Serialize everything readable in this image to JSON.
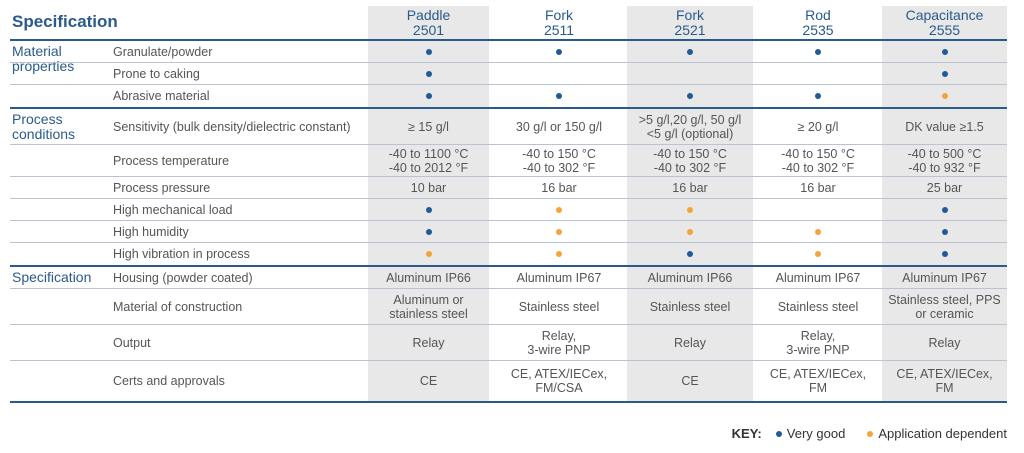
{
  "title": "Specification",
  "columns": [
    {
      "name": "Paddle",
      "model": "2501"
    },
    {
      "name": "Fork",
      "model": "2511"
    },
    {
      "name": "Fork",
      "model": "2521"
    },
    {
      "name": "Rod",
      "model": "2535"
    },
    {
      "name": "Capacitance",
      "model": "2555"
    }
  ],
  "sections": [
    {
      "label": "Material properties",
      "rows": [
        {
          "label": "Granulate/powder",
          "cells": [
            "vg",
            "vg",
            "vg",
            "vg",
            "vg"
          ]
        },
        {
          "label": "Prone to caking",
          "cells": [
            "vg",
            "",
            "",
            "",
            "vg"
          ]
        },
        {
          "label": "Abrasive material",
          "cells": [
            "vg",
            "vg",
            "vg",
            "vg",
            "ad"
          ]
        }
      ]
    },
    {
      "label": "Process conditions",
      "rows": [
        {
          "label": "Sensitivity (bulk density/dielectric constant)",
          "cells": [
            "≥ 15 g/l",
            "30 g/l or 150 g/l",
            ">5 g/l,20 g/l, 50 g/l\n<5 g/l (optional)",
            "≥ 20 g/l",
            "DK value ≥1.5"
          ]
        },
        {
          "label": "Process temperature",
          "cells": [
            "-40 to 1100 °C\n-40 to 2012 °F",
            "-40 to 150 °C\n-40 to 302 °F",
            "-40 to 150 °C\n-40 to 302 °F",
            "-40 to 150 °C\n-40 to 302 °F",
            "-40 to 500 °C\n-40 to 932 °F"
          ]
        },
        {
          "label": "Process pressure",
          "cells": [
            "10 bar",
            "16 bar",
            "16 bar",
            "16 bar",
            "25 bar"
          ]
        },
        {
          "label": "High mechanical load",
          "cells": [
            "vg",
            "ad",
            "ad",
            "",
            "vg"
          ]
        },
        {
          "label": "High humidity",
          "cells": [
            "vg",
            "ad",
            "ad",
            "ad",
            "vg"
          ]
        },
        {
          "label": "High vibration in process",
          "cells": [
            "ad",
            "ad",
            "vg",
            "ad",
            "vg"
          ]
        }
      ]
    },
    {
      "label": "Specification",
      "rows": [
        {
          "label": "Housing (powder coated)",
          "cells": [
            "Aluminum IP66",
            "Aluminum IP67",
            "Aluminum IP66",
            "Aluminum IP67",
            "Aluminum IP67"
          ]
        },
        {
          "label": "Material of construction",
          "cells": [
            "Aluminum or\nstainless steel",
            "Stainless steel",
            "Stainless steel",
            "Stainless steel",
            "Stainless steel, PPS\nor ceramic"
          ]
        },
        {
          "label": "Output",
          "cells": [
            "Relay",
            "Relay,\n3-wire PNP",
            "Relay",
            "Relay,\n3-wire PNP",
            "Relay"
          ]
        },
        {
          "label": "Certs and approvals",
          "cells": [
            "CE",
            "CE, ATEX/IECex,\nFM/CSA",
            "CE",
            "CE, ATEX/IECex,\nFM",
            "CE, ATEX/IECex,\nFM"
          ]
        }
      ]
    }
  ],
  "key": {
    "label": "KEY:",
    "very_good": "Very good",
    "application_dependent": "Application dependent"
  },
  "colors": {
    "very_good": "#1f5a9a",
    "application_dependent": "#f2a33a",
    "accent": "#2a5a8c"
  }
}
